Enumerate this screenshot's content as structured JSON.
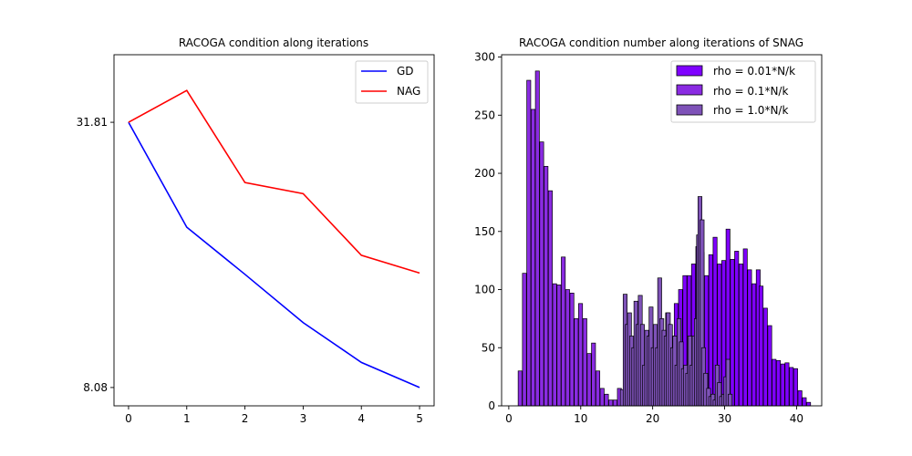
{
  "chart_data": [
    {
      "type": "line",
      "title": "RACOGA condition along iterations",
      "x": [
        0,
        1,
        2,
        3,
        4,
        5
      ],
      "series": [
        {
          "name": "GD",
          "color": "#0000ff",
          "values": [
            31.81,
            18.5,
            14.5,
            11.3,
            9.2,
            8.08
          ]
        },
        {
          "name": "NAG",
          "color": "#ff0000",
          "values": [
            31.81,
            37.5,
            23.3,
            22.0,
            16.0,
            14.6
          ]
        }
      ],
      "xticks": [
        "0",
        "1",
        "2",
        "3",
        "4",
        "5"
      ],
      "yticks": [
        {
          "label": "31.81",
          "value": 31.81
        },
        {
          "label": "8.08",
          "value": 8.08
        }
      ],
      "xlim": [
        -0.25,
        5.25
      ],
      "yscale": "log",
      "ylim": [
        7.35,
        45.1
      ],
      "legend": "top-right",
      "grid": false
    },
    {
      "type": "bar",
      "title": "RACOGA condition number along iterations of SNAG",
      "bin_width": 0.55,
      "xlim": [
        -1.0,
        43.5
      ],
      "ylim": [
        0,
        302
      ],
      "xticks": [
        "0",
        "10",
        "20",
        "30",
        "40"
      ],
      "yticks": [
        "0",
        "50",
        "100",
        "150",
        "200",
        "250",
        "300"
      ],
      "legend": "top-right",
      "grid": false,
      "series": [
        {
          "name": "rho = 0.01*N/k",
          "color": "#7f00ff",
          "bins": [
            [
              21.2,
              42
            ],
            [
              21.8,
              80
            ],
            [
              22.4,
              60
            ],
            [
              23.0,
              88
            ],
            [
              23.6,
              100
            ],
            [
              24.2,
              112
            ],
            [
              24.8,
              112
            ],
            [
              25.4,
              122
            ],
            [
              26.0,
              137
            ],
            [
              26.6,
              132
            ],
            [
              27.2,
              112
            ],
            [
              27.8,
              130
            ],
            [
              28.4,
              145
            ],
            [
              29.0,
              122
            ],
            [
              29.6,
              125
            ],
            [
              30.2,
              152
            ],
            [
              30.8,
              126
            ],
            [
              31.4,
              133
            ],
            [
              32.0,
              122
            ],
            [
              32.6,
              135
            ],
            [
              33.2,
              117
            ],
            [
              33.8,
              105
            ],
            [
              34.4,
              117
            ],
            [
              34.8,
              103
            ],
            [
              35.4,
              84
            ],
            [
              36.0,
              69
            ],
            [
              36.6,
              40
            ],
            [
              37.2,
              39
            ],
            [
              37.8,
              36
            ],
            [
              38.4,
              37
            ],
            [
              39.0,
              33
            ],
            [
              39.6,
              32
            ],
            [
              40.2,
              13
            ],
            [
              40.8,
              7
            ],
            [
              41.4,
              3
            ]
          ]
        },
        {
          "name": "rho = 0.1*N/k",
          "color": "#8a2be2",
          "bins": [
            [
              1.3,
              30
            ],
            [
              1.9,
              114
            ],
            [
              2.5,
              280
            ],
            [
              3.1,
              255
            ],
            [
              3.7,
              288
            ],
            [
              4.3,
              227
            ],
            [
              4.9,
              206
            ],
            [
              5.5,
              185
            ],
            [
              6.1,
              105
            ],
            [
              6.7,
              104
            ],
            [
              7.3,
              128
            ],
            [
              7.9,
              100
            ],
            [
              8.5,
              97
            ],
            [
              9.1,
              75
            ],
            [
              9.7,
              88
            ],
            [
              10.3,
              75
            ],
            [
              10.9,
              45
            ],
            [
              11.5,
              54
            ],
            [
              12.1,
              30
            ],
            [
              12.7,
              15
            ],
            [
              13.3,
              10
            ],
            [
              13.9,
              5
            ],
            [
              14.5,
              5
            ],
            [
              15.1,
              15
            ]
          ]
        },
        {
          "name": "rho = 1.0*N/k",
          "color": "#7e52b8",
          "bins": [
            [
              15.5,
              14
            ],
            [
              15.9,
              96
            ],
            [
              16.2,
              70
            ],
            [
              16.5,
              80
            ],
            [
              16.8,
              60
            ],
            [
              17.1,
              50
            ],
            [
              17.4,
              90
            ],
            [
              17.7,
              70
            ],
            [
              18.0,
              95
            ],
            [
              18.3,
              70
            ],
            [
              18.6,
              35
            ],
            [
              18.9,
              65
            ],
            [
              19.2,
              60
            ],
            [
              19.5,
              85
            ],
            [
              19.8,
              50
            ],
            [
              20.1,
              70
            ],
            [
              20.4,
              50
            ],
            [
              20.7,
              110
            ],
            [
              21.0,
              75
            ],
            [
              21.3,
              65
            ],
            [
              21.6,
              60
            ],
            [
              21.9,
              80
            ],
            [
              22.2,
              70
            ],
            [
              22.5,
              50
            ],
            [
              22.8,
              60
            ],
            [
              23.1,
              35
            ],
            [
              23.4,
              75
            ],
            [
              23.7,
              55
            ],
            [
              24.0,
              32
            ],
            [
              24.3,
              35
            ],
            [
              24.6,
              28
            ],
            [
              24.9,
              60
            ],
            [
              25.2,
              35
            ],
            [
              25.5,
              60
            ],
            [
              25.8,
              75
            ],
            [
              26.1,
              147
            ],
            [
              26.3,
              180
            ],
            [
              26.6,
              160
            ],
            [
              26.8,
              50
            ],
            [
              27.1,
              28
            ],
            [
              27.5,
              15
            ],
            [
              27.8,
              8
            ],
            [
              28.1,
              10
            ],
            [
              28.4,
              5
            ],
            [
              28.7,
              35
            ],
            [
              29.0,
              20
            ],
            [
              29.3,
              8
            ],
            [
              29.6,
              10
            ],
            [
              29.9,
              25
            ],
            [
              30.2,
              40
            ],
            [
              30.5,
              10
            ]
          ]
        }
      ]
    }
  ]
}
